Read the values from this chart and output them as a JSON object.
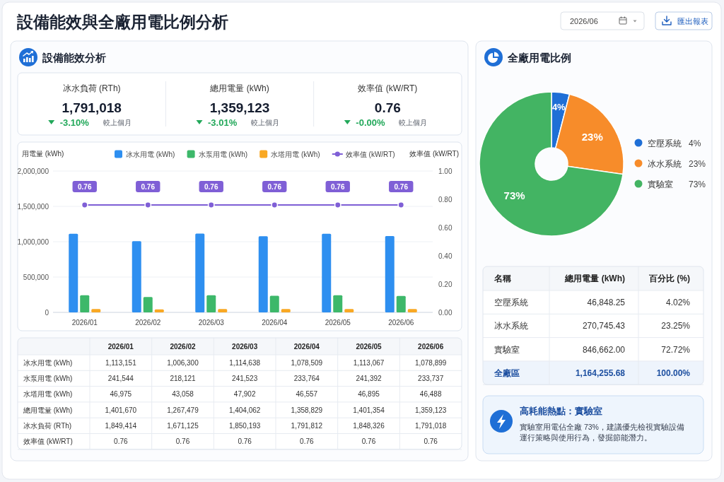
{
  "chart_data": [
    {
      "type": "other",
      "title": "設備能效與全廠用電比例分析",
      "annotations": [
        "2026/06",
        "匯出報表"
      ]
    },
    {
      "type": "other",
      "title": "設備能效分析",
      "categories": [
        "冰水負荷 (RTh)",
        "總用電量 (kWh)",
        "效率值 (kW/RT)"
      ],
      "annotations": [
        "1,791,018",
        "-3.10%",
        "較上個月",
        "1,359,123",
        "-3.01%",
        "較上個月",
        "0.76",
        "-0.00%",
        "較上個月"
      ]
    },
    {
      "type": "bar",
      "categories": [
        "2026/01",
        "2026/02",
        "2026/03",
        "2026/04",
        "2026/05",
        "2026/06"
      ],
      "ylabel": "用電量 (kWh)",
      "y2label": "效率值 (kW/RT)",
      "ylim": [
        0,
        2000000
      ],
      "yticks": [
        0,
        {
          "value": 500000,
          "label": "500,000"
        },
        {
          "value": 1000000,
          "label": "1,000,000"
        },
        {
          "value": 1500000,
          "label": "1,500,000"
        },
        {
          "value": 2000000,
          "label": "2,000,000"
        }
      ],
      "y2lim": [
        0,
        1
      ],
      "y2ticks": [
        {
          "value": 0,
          "label": "0.00"
        },
        {
          "value": 0.2,
          "label": "0.20"
        },
        {
          "value": 0.4,
          "label": "0.40"
        },
        {
          "value": 0.6,
          "label": "0.60"
        },
        {
          "value": 0.8,
          "label": "0.80"
        },
        {
          "value": 1,
          "label": "1.00"
        }
      ],
      "grid": "y",
      "legend": "top",
      "marker": "circle",
      "series": [
        {
          "name": "冰水用電 (kWh)",
          "color": "#2e8ff0",
          "values": [
            1113151,
            1006300,
            1114638,
            1078509,
            1113067,
            1078899
          ]
        },
        {
          "name": "水泵用電 (kWh)",
          "color": "#3db86a",
          "values": [
            241544,
            218121,
            241523,
            233764,
            241392,
            233737
          ]
        },
        {
          "name": "水塔用電 (kWh)",
          "color": "#f9a823",
          "values": [
            46975,
            43058,
            47902,
            46557,
            46895,
            46488
          ]
        },
        {
          "name": "效率值 (kW/RT)",
          "type": "line",
          "axis": "y2",
          "color": "#7f5fd6",
          "values": [
            0.76,
            0.76,
            0.76,
            0.76,
            0.76,
            0.76
          ],
          "value_labels": [
            "0.76",
            "0.76",
            "0.76",
            "0.76",
            "0.76",
            "0.76"
          ]
        }
      ]
    },
    {
      "type": "other",
      "categories": [
        null,
        "2026/01",
        "2026/02",
        "2026/03",
        "2026/04",
        "2026/05",
        "2026/06"
      ],
      "annotations": [
        "冰水用電 (kWh)",
        "1,113,151",
        "1,006,300",
        "1,114,638",
        "1,078,509",
        "1,113,067",
        "1,078,899",
        "水泵用電 (kWh)",
        "241,544",
        "218,121",
        "241,523",
        "233,764",
        "241,392",
        "233,737",
        "水塔用電 (kWh)",
        "46,975",
        "43,058",
        "47,902",
        "46,557",
        "46,895",
        "46,488",
        "總用電量 (kWh)",
        "1,401,670",
        "1,267,479",
        "1,404,062",
        "1,358,829",
        "1,401,354",
        "1,359,123",
        "冰水負荷 (RTh)",
        "1,849,414",
        "1,671,125",
        "1,850,193",
        "1,791,812",
        "1,848,326",
        "1,791,018",
        "效率值 (kW/RT)",
        "0.76",
        "0.76",
        "0.76",
        "0.76",
        "0.76",
        "0.76"
      ]
    },
    {
      "type": "donut",
      "title": "全廠用電比例",
      "categories": [
        "空壓系統",
        "冰水系統",
        "實驗室"
      ],
      "values": [
        4.02,
        23.25,
        72.72
      ],
      "colors": [
        "#1f6fd6",
        "#f78c2a",
        "#43b463"
      ],
      "value_labels": [
        "4%",
        "23%",
        "73%"
      ],
      "legend": "right"
    },
    {
      "type": "other",
      "categories": [
        "名稱",
        "總用電量 (kWh)",
        "百分比 (%)"
      ],
      "annotations": [
        "空壓系統",
        "46,848.25",
        "4.02%",
        "冰水系統",
        "270,745.43",
        "23.25%",
        "實驗室",
        "846,662.00",
        "72.72%",
        "全廠區",
        "1,164,255.68",
        "100.00%"
      ]
    },
    {
      "type": "other",
      "title": "高耗能熱點：實驗室",
      "annotations": [
        "實驗室用電佔全廠 73%，建議優先檢視實驗設備運行策略與使用行為，發掘節能潛力。"
      ]
    }
  ]
}
